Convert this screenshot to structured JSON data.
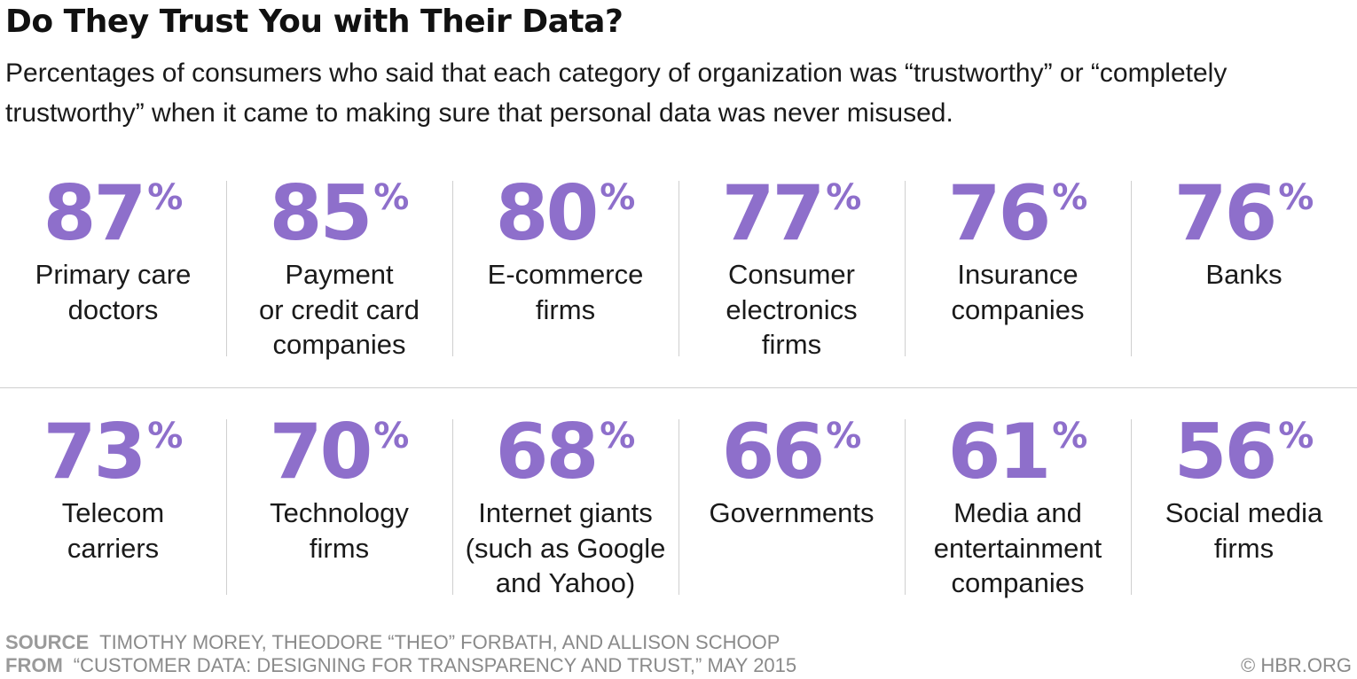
{
  "title": "Do They Trust You with Their Data?",
  "subtitle": "Percentages of consumers who said that each category of organization was “trustworthy” or “completely trustworthy” when it came to making sure that personal data was never misused.",
  "chart_data": {
    "type": "table",
    "unit": "%",
    "items": [
      {
        "value": 87,
        "label": "Primary care\ndoctors"
      },
      {
        "value": 85,
        "label": "Payment\nor credit card\ncompanies"
      },
      {
        "value": 80,
        "label": "E-commerce\nfirms"
      },
      {
        "value": 77,
        "label": "Consumer\nelectronics\nfirms"
      },
      {
        "value": 76,
        "label": "Insurance\ncompanies"
      },
      {
        "value": 76,
        "label": "Banks"
      },
      {
        "value": 73,
        "label": "Telecom\ncarriers"
      },
      {
        "value": 70,
        "label": "Technology\nfirms"
      },
      {
        "value": 68,
        "label": "Internet giants\n(such as Google\nand Yahoo)"
      },
      {
        "value": 66,
        "label": "Governments"
      },
      {
        "value": 61,
        "label": "Media and\nentertainment\ncompanies"
      },
      {
        "value": 56,
        "label": "Social media\nfirms"
      }
    ],
    "accent_color": "#8e6fcb"
  },
  "footer": {
    "source_key": "SOURCE",
    "source_text": "TIMOTHY MOREY, THEODORE “THEO” FORBATH, AND ALLISON SCHOOP",
    "from_key": "FROM",
    "from_text": "“CUSTOMER DATA: DESIGNING FOR TRANSPARENCY AND TRUST,” MAY 2015",
    "copyright": "© HBR.ORG"
  }
}
